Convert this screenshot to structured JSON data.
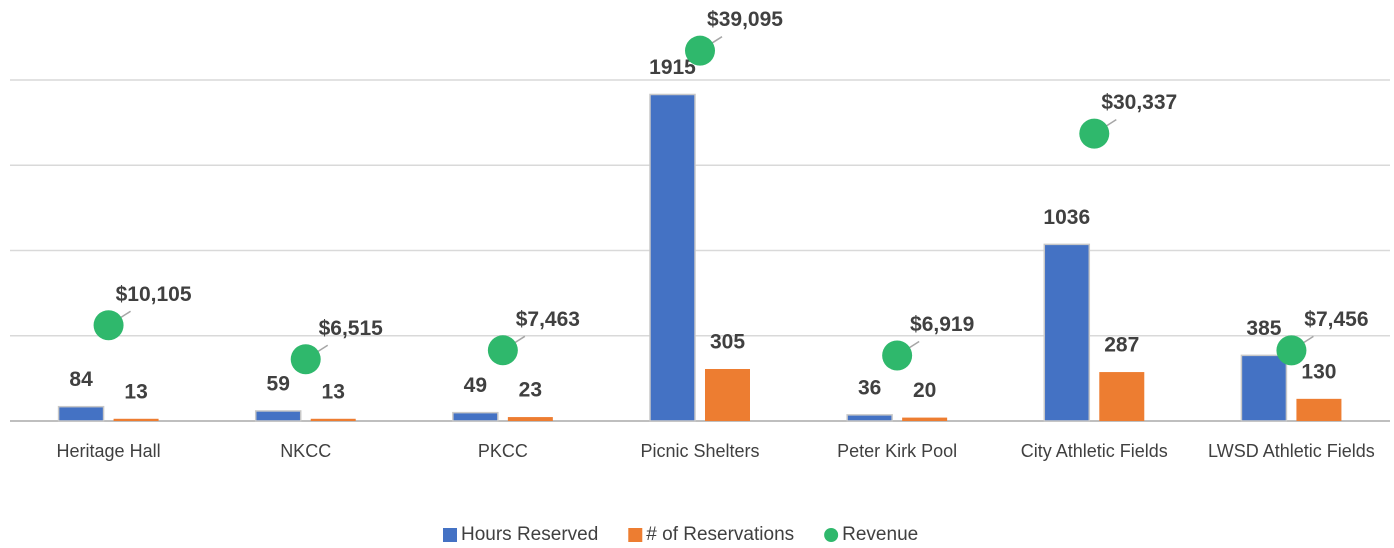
{
  "chart_data": {
    "type": "bar",
    "categories": [
      "Heritage Hall",
      "NKCC",
      "PKCC",
      "Picnic Shelters",
      "Peter Kirk Pool",
      "City Athletic Fields",
      "LWSD Athletic Fields"
    ],
    "series": [
      {
        "name": "Hours Reserved",
        "color": "#4472c4",
        "values": [
          84,
          59,
          49,
          1915,
          36,
          1036,
          385
        ]
      },
      {
        "name": "# of Reservations",
        "color": "#ed7d31",
        "values": [
          13,
          13,
          23,
          305,
          20,
          287,
          130
        ]
      },
      {
        "name": "Revenue",
        "color": "#2fb86c",
        "type": "scatter",
        "axis": "y2",
        "values": [
          10105,
          6515,
          7463,
          39095,
          6919,
          30337,
          7456
        ],
        "value_labels": [
          "$10,105",
          "$6,515",
          "$7,463",
          "$39,095",
          "$6,919",
          "$30,337",
          "$7,456"
        ]
      }
    ],
    "ylim": [
      0,
      2000
    ],
    "yticks": [
      0,
      500,
      1000,
      1500,
      2000
    ],
    "y2lim": [
      0,
      36000
    ],
    "grid": true,
    "legend": "bottom"
  }
}
